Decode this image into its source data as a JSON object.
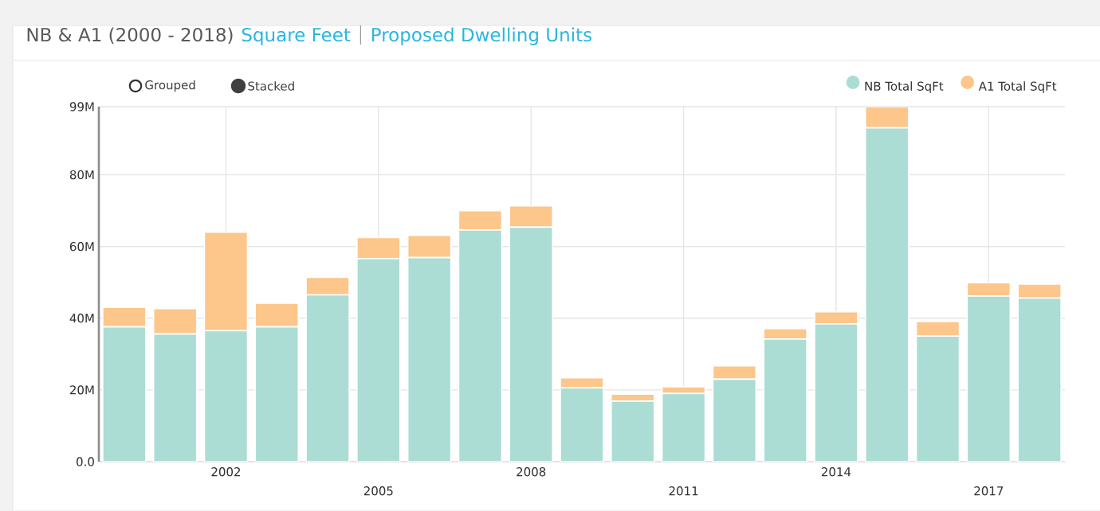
{
  "chart_data": {
    "type": "bar",
    "stacked": true,
    "title": "NB & A1 (2000 - 2018)",
    "annotations": [
      "Square Feet",
      "Proposed Dwelling Units",
      "Grouped",
      "Stacked"
    ],
    "categories": [
      null,
      null,
      "2002",
      null,
      null,
      "2005",
      null,
      null,
      "2008",
      null,
      null,
      "2011",
      null,
      null,
      "2014",
      null,
      null,
      "2017",
      null
    ],
    "series": [
      {
        "name": "NB Total SqFt",
        "color": "#abddd4",
        "values": [
          37.6,
          35.6,
          36.5,
          37.6,
          46.5,
          56.6,
          56.9,
          64.6,
          65.4,
          20.6,
          16.9,
          19.0,
          23.0,
          34.2,
          38.4,
          93.1,
          35.0,
          46.2,
          45.6
        ]
      },
      {
        "name": "A1 Total SqFt",
        "color": "#fdc68a",
        "values": [
          5.4,
          7.1,
          27.5,
          6.6,
          4.9,
          5.9,
          6.2,
          5.4,
          5.9,
          2.8,
          1.9,
          1.9,
          3.7,
          2.9,
          3.4,
          5.9,
          4.1,
          3.7,
          3.9
        ]
      }
    ],
    "ylim": [
      0,
      99
    ],
    "yticks": [
      {
        "value": 0,
        "label": "0.0"
      },
      {
        "value": 20,
        "label": "20M"
      },
      {
        "value": 40,
        "label": "40M"
      },
      {
        "value": 60,
        "label": "60M"
      },
      {
        "value": 80,
        "label": "80M"
      },
      {
        "value": 99,
        "label": "99M"
      }
    ],
    "grid": true,
    "legend": "top right"
  }
}
